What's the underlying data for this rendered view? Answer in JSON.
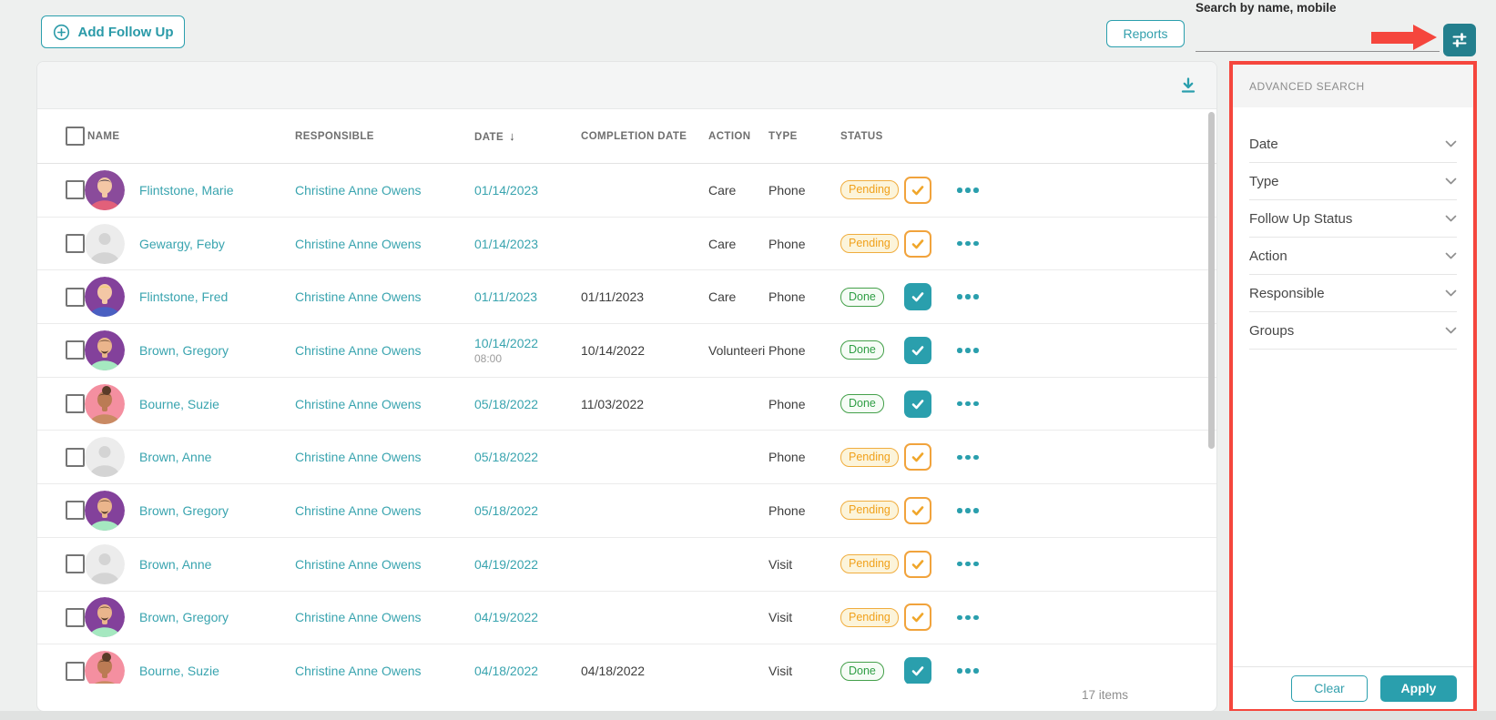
{
  "topbar": {
    "add_follow_up": "Add Follow Up",
    "reports": "Reports",
    "search_label": "Search by name, mobile",
    "search_value": ""
  },
  "icons": {
    "add": "plus-circle",
    "download": "download-arrow",
    "filter": "sliders",
    "sort": "↓",
    "row_menu": "•••",
    "check": "✓",
    "chevron": "˅"
  },
  "colors": {
    "teal": "#2a9fad",
    "teal_dark": "#237f8d",
    "link_teal": "#39a4af",
    "annotation_red": "#f5463d",
    "pending_orange": "#f0a11c",
    "done_green": "#2e9e44",
    "scrollbar_gray": "#c6c6c6"
  },
  "table": {
    "headers": {
      "name": "NAME",
      "responsible": "RESPONSIBLE",
      "date": "DATE",
      "completion": "COMPLETION DATE",
      "action": "ACTION",
      "type": "TYPE",
      "status": "STATUS"
    },
    "sorted_column": "date",
    "items_count": "17 items",
    "rows": [
      {
        "name": "Flintstone, Marie",
        "responsible": "Christine Anne Owens",
        "date": "01/14/2023",
        "time": "",
        "completion": "",
        "action": "Care",
        "type": "Phone",
        "status": "Pending",
        "avatar": {
          "kind": "person",
          "bg": "#8a4b9b",
          "hair": "#3c3544",
          "skin": "#f3c7a5",
          "shirt": "#e2607a"
        }
      },
      {
        "name": "Gewargy, Feby",
        "responsible": "Christine Anne Owens",
        "date": "01/14/2023",
        "time": "",
        "completion": "",
        "action": "Care",
        "type": "Phone",
        "status": "Pending",
        "avatar": {
          "kind": "placeholder"
        }
      },
      {
        "name": "Flintstone, Fred",
        "responsible": "Christine Anne Owens",
        "date": "01/11/2023",
        "time": "",
        "completion": "01/11/2023",
        "action": "Care",
        "type": "Phone",
        "status": "Done",
        "avatar": {
          "kind": "person",
          "bg": "#83419b",
          "hair": "#f2cf5b",
          "skin": "#f3c7a5",
          "shirt": "#4a5fc1"
        }
      },
      {
        "name": "Brown, Gregory",
        "responsible": "Christine Anne Owens",
        "date": "10/14/2022",
        "time": "08:00",
        "completion": "10/14/2022",
        "action": "Volunteeri",
        "type": "Phone",
        "status": "Done",
        "avatar": {
          "kind": "person",
          "bg": "#83419b",
          "hair": "#6b4a35",
          "skin": "#eab58c",
          "shirt": "#a5e8c0",
          "mustache": true
        }
      },
      {
        "name": "Bourne, Suzie",
        "responsible": "Christine Anne Owens",
        "date": "05/18/2022",
        "time": "",
        "completion": "11/03/2022",
        "action": "",
        "type": "Phone",
        "status": "Done",
        "avatar": {
          "kind": "person",
          "bg": "#f48fa0",
          "hair": "#5a3b28",
          "skin": "#bb7b54",
          "shirt": "#c98a63",
          "bun": true
        }
      },
      {
        "name": "Brown, Anne",
        "responsible": "Christine Anne Owens",
        "date": "05/18/2022",
        "time": "",
        "completion": "",
        "action": "",
        "type": "Phone",
        "status": "Pending",
        "avatar": {
          "kind": "placeholder"
        }
      },
      {
        "name": "Brown, Gregory",
        "responsible": "Christine Anne Owens",
        "date": "05/18/2022",
        "time": "",
        "completion": "",
        "action": "",
        "type": "Phone",
        "status": "Pending",
        "avatar": {
          "kind": "person",
          "bg": "#83419b",
          "hair": "#6b4a35",
          "skin": "#eab58c",
          "shirt": "#a5e8c0",
          "mustache": true
        }
      },
      {
        "name": "Brown, Anne",
        "responsible": "Christine Anne Owens",
        "date": "04/19/2022",
        "time": "",
        "completion": "",
        "action": "",
        "type": "Visit",
        "status": "Pending",
        "avatar": {
          "kind": "placeholder"
        }
      },
      {
        "name": "Brown, Gregory",
        "responsible": "Christine Anne Owens",
        "date": "04/19/2022",
        "time": "",
        "completion": "",
        "action": "",
        "type": "Visit",
        "status": "Pending",
        "avatar": {
          "kind": "person",
          "bg": "#83419b",
          "hair": "#6b4a35",
          "skin": "#eab58c",
          "shirt": "#a5e8c0",
          "mustache": true
        }
      },
      {
        "name": "Bourne, Suzie",
        "responsible": "Christine Anne Owens",
        "date": "04/18/2022",
        "time": "",
        "completion": "04/18/2022",
        "action": "",
        "type": "Visit",
        "status": "Done",
        "avatar": {
          "kind": "person",
          "bg": "#f48fa0",
          "hair": "#5a3b28",
          "skin": "#bb7b54",
          "shirt": "#c98a63",
          "bun": true
        }
      }
    ]
  },
  "advanced_search": {
    "title": "ADVANCED SEARCH",
    "filters": [
      "Date",
      "Type",
      "Follow Up Status",
      "Action",
      "Responsible",
      "Groups"
    ],
    "clear": "Clear",
    "apply": "Apply"
  }
}
